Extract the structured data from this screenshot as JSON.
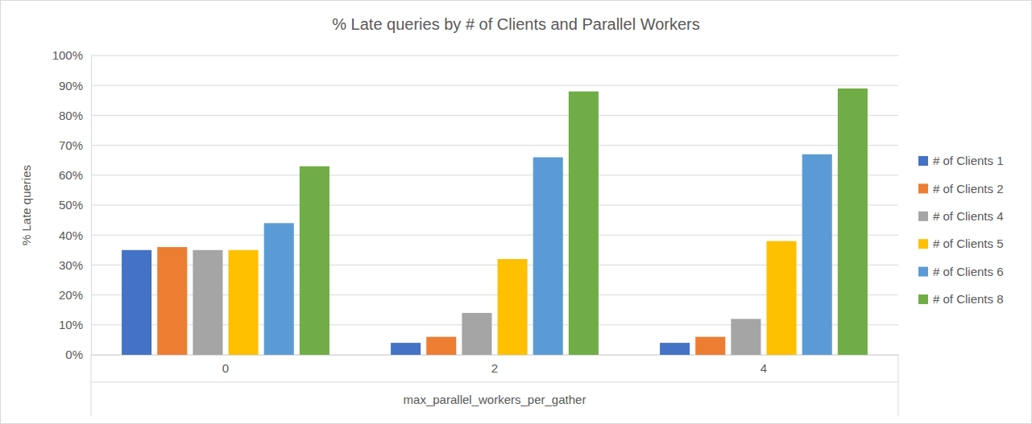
{
  "chart_data": {
    "type": "bar",
    "title": "% Late queries by # of Clients and Parallel Workers",
    "x_label": "max_parallel_workers_per_gather",
    "y_label": "% Late queries",
    "categories": [
      "0",
      "2",
      "4"
    ],
    "series": [
      {
        "name": "# of Clients 1",
        "color": "#4472c4",
        "values": [
          35,
          4,
          4
        ]
      },
      {
        "name": "# of Clients 2",
        "color": "#ed7d31",
        "values": [
          36,
          6,
          6
        ]
      },
      {
        "name": "# of Clients 4",
        "color": "#a5a5a5",
        "values": [
          35,
          14,
          12
        ]
      },
      {
        "name": "# of Clients 5",
        "color": "#ffc000",
        "values": [
          35,
          32,
          38
        ]
      },
      {
        "name": "# of Clients 6",
        "color": "#5b9bd5",
        "values": [
          44,
          66,
          67
        ]
      },
      {
        "name": "# of Clients 8",
        "color": "#70ad47",
        "values": [
          63,
          88,
          89
        ]
      }
    ],
    "ylim": [
      0,
      100
    ],
    "yticks": [
      {
        "value": 0,
        "label": "0%"
      },
      {
        "value": 10,
        "label": "10%"
      },
      {
        "value": 20,
        "label": "20%"
      },
      {
        "value": 30,
        "label": "30%"
      },
      {
        "value": 40,
        "label": "40%"
      },
      {
        "value": 50,
        "label": "50%"
      },
      {
        "value": 60,
        "label": "60%"
      },
      {
        "value": 70,
        "label": "70%"
      },
      {
        "value": 80,
        "label": "80%"
      },
      {
        "value": 90,
        "label": "90%"
      },
      {
        "value": 100,
        "label": "100%"
      }
    ],
    "grid": true,
    "legend": "right"
  }
}
